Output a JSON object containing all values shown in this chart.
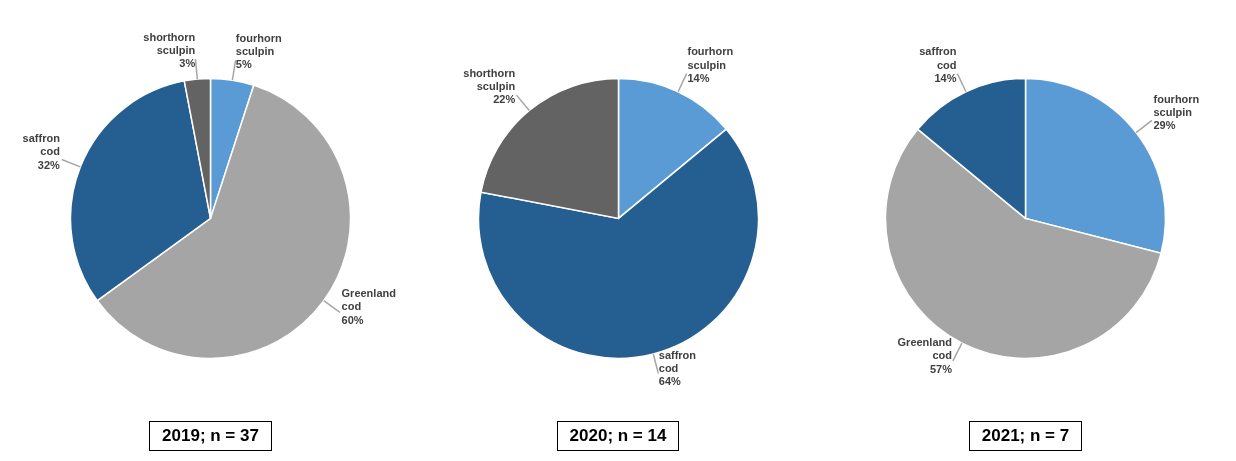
{
  "chart_data": [
    {
      "type": "pie",
      "title": "2019; n = 37",
      "categories": [
        "fourhorn sculpin",
        "Greenland cod",
        "saffron cod",
        "shorthorn sculpin"
      ],
      "values": [
        5,
        60,
        32,
        3
      ],
      "value_labels": [
        "5%",
        "60%",
        "32%",
        "3%"
      ],
      "colors": [
        "#5b9bd5",
        "#a5a5a5",
        "#255e91",
        "#636363"
      ],
      "legend": false
    },
    {
      "type": "pie",
      "title": "2020; n = 14",
      "categories": [
        "fourhorn sculpin",
        "saffron cod",
        "shorthorn sculpin"
      ],
      "values": [
        14,
        64,
        22
      ],
      "value_labels": [
        "14%",
        "64%",
        "22%"
      ],
      "colors": [
        "#5b9bd5",
        "#255e91",
        "#636363"
      ],
      "legend": false
    },
    {
      "type": "pie",
      "title": "2021; n = 7",
      "categories": [
        "fourhorn sculpin",
        "Greenland cod",
        "saffron cod"
      ],
      "values": [
        29,
        57,
        14
      ],
      "value_labels": [
        "29%",
        "57%",
        "14%"
      ],
      "colors": [
        "#5b9bd5",
        "#a5a5a5",
        "#255e91"
      ],
      "legend": false
    }
  ]
}
